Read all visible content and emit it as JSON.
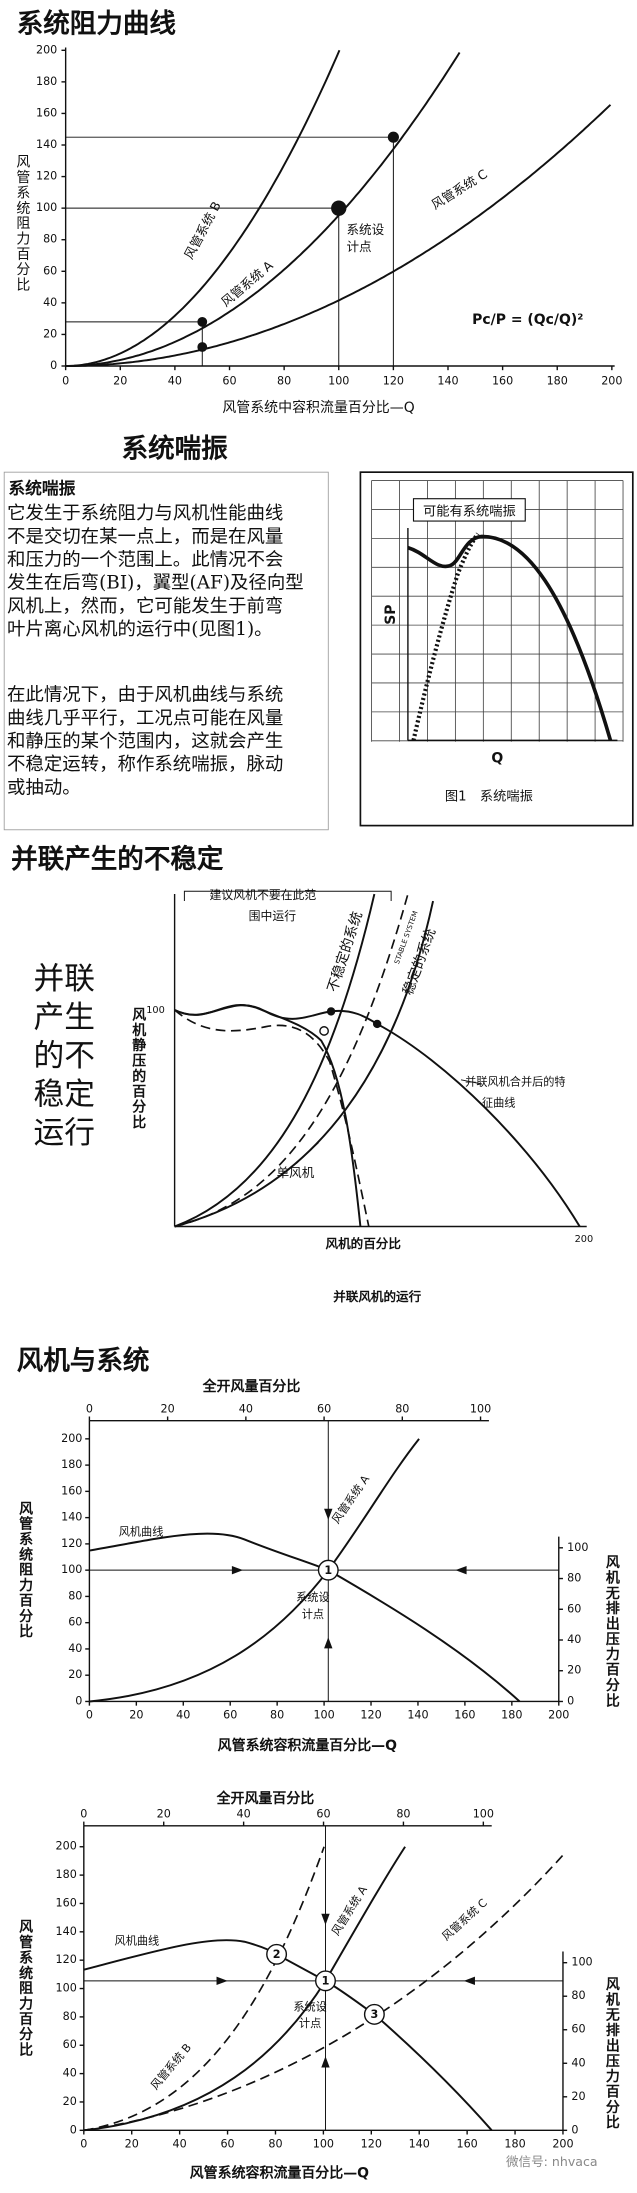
{
  "resistance": {
    "title": "系统阻力曲线",
    "xticks": [
      0,
      20,
      40,
      60,
      80,
      100,
      120,
      140,
      160,
      180,
      200
    ],
    "yticks": [
      0,
      20,
      40,
      60,
      80,
      100,
      120,
      140,
      160,
      180,
      200
    ],
    "x_label": "风管系统中容积流量百分比—Q",
    "y_label": "风管系统阻力百分比",
    "curve_b": "风管系统 B",
    "curve_a": "风管系统 A",
    "curve_c": "风管系统 C",
    "design_point": [
      "系统设",
      "计点"
    ],
    "formula": "Pc/P = (Qc/Q)²"
  },
  "surge": {
    "title": "系统喘振",
    "heading": "系统喘振",
    "paragraph_1": [
      "它发生于系统阻力与风机性能曲线",
      "不是交切在某一点上，而是在风量",
      "和压力的一个范围上。此情况不会",
      "发生在后弯(BI)，翼型(AF)及径向型",
      "风机上，然而，它可能发生于前弯",
      "叶片离心风机的运行中(见图1)。"
    ],
    "paragraph_2": [
      "在此情况下，由于风机曲线与系统",
      "曲线几乎平行，工况点可能在风量",
      "和静压的某个范围内，这就会产生",
      "不稳定运转，称作系统喘振，脉动",
      "或抽动。"
    ],
    "figure_note": "可能有系统喘振",
    "figure_y_label": "SP",
    "figure_x_label": "Q",
    "figure_caption": "图1　系统喘振"
  },
  "parallel": {
    "title": "并联产生的不稳定",
    "side_text": [
      "并联",
      "产生",
      "的不",
      "稳定",
      "运行"
    ],
    "y_tick": 100,
    "x_tick": 200,
    "warning": [
      "建议风机不要在此范",
      "围中运行"
    ],
    "unstable": "不稳定的系统",
    "stable": "稳定的系统",
    "stable_en": "STABLE SYSTEM",
    "combined": [
      "并联风机合并后的特",
      "征曲线"
    ],
    "single": "单风机",
    "y_label": "风机静压的百分比",
    "x_label": "风机的百分比",
    "caption": "并联风机的运行"
  },
  "fan_system_1": {
    "title": "风机与系统",
    "top_label": "全开风量百分比",
    "top_ticks": [
      0,
      20,
      40,
      60,
      80,
      100
    ],
    "xticks": [
      0,
      20,
      40,
      60,
      80,
      100,
      120,
      140,
      160,
      180,
      200
    ],
    "yticks": [
      0,
      20,
      40,
      60,
      80,
      100,
      120,
      140,
      160,
      180,
      200
    ],
    "y2ticks": [
      0,
      20,
      40,
      60,
      80,
      100
    ],
    "fan_curve": "风机曲线",
    "system_a": "风管系统 A",
    "design_point": [
      "系统设",
      "计点"
    ],
    "point_1": "1",
    "y_label": "风管系统阻力百分比",
    "y2_label": "风机无排出压力百分比",
    "x_label": "风管系统容积流量百分比—Q"
  },
  "fan_system_2": {
    "top_label": "全开风量百分比",
    "top_ticks": [
      0,
      20,
      40,
      60,
      80,
      100
    ],
    "xticks": [
      0,
      20,
      40,
      60,
      80,
      100,
      120,
      140,
      160,
      180,
      200
    ],
    "yticks": [
      0,
      20,
      40,
      60,
      80,
      100,
      120,
      140,
      160,
      180,
      200
    ],
    "y2ticks": [
      0,
      20,
      40,
      60,
      80,
      100
    ],
    "fan_curve": "风机曲线",
    "system_a": "风管系统 A",
    "system_b": "风管系统 B",
    "system_c": "风管系统 C",
    "design_point": [
      "系统设",
      "计点"
    ],
    "point_1": "1",
    "point_2": "2",
    "point_3": "3",
    "y_label": "风管系统阻力百分比",
    "y2_label": "风机无排出压力百分比",
    "x_label": "风管系统容积流量百分比—Q",
    "watermark": "微信号: nhvaca"
  }
}
